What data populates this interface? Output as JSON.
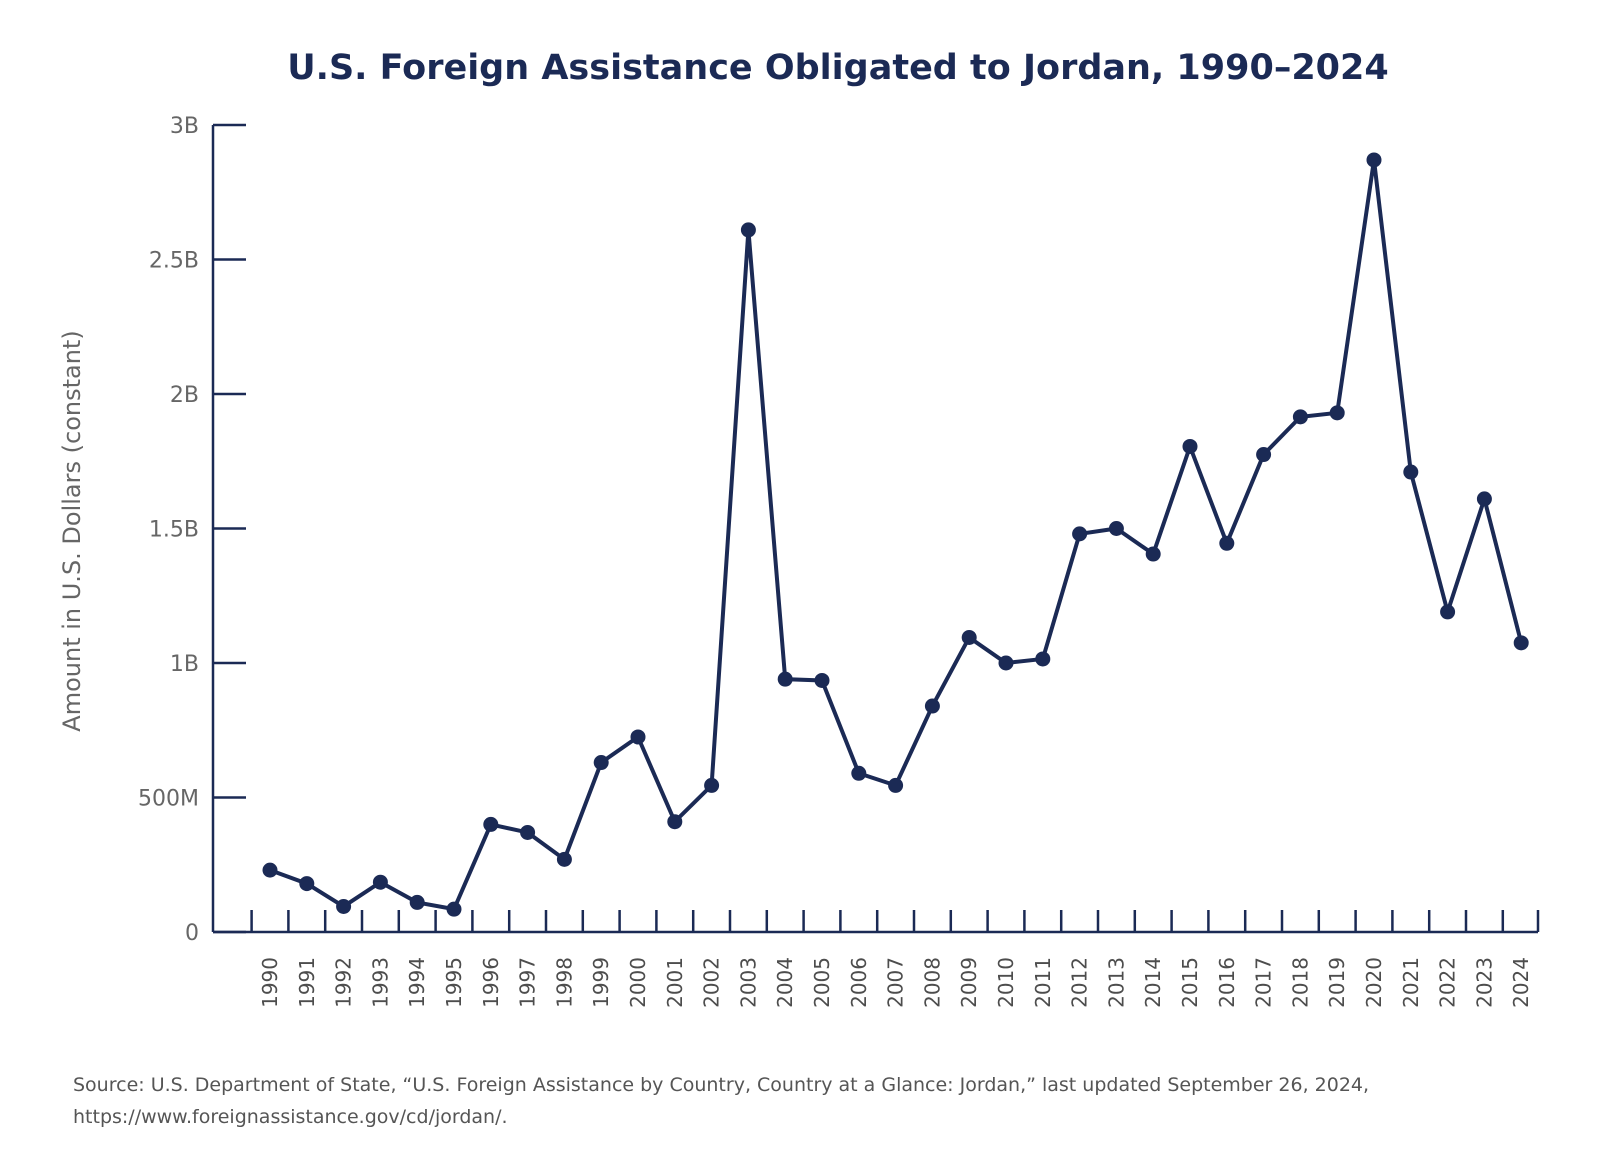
{
  "colors": {
    "line": "#1b2a55",
    "text": "#666666",
    "title": "#1b2a55",
    "background": "#ffffff"
  },
  "chart_data": {
    "type": "line",
    "title": "U.S. Foreign Assistance Obligated to Jordan, 1990–2024",
    "xlabel": "",
    "ylabel": "Amount in U.S. Dollars (constant)",
    "x": [
      "1990",
      "1991",
      "1992",
      "1993",
      "1994",
      "1995",
      "1996",
      "1997",
      "1998",
      "1999",
      "2000",
      "2001",
      "2002",
      "2003",
      "2004",
      "2005",
      "2006",
      "2007",
      "2008",
      "2009",
      "2010",
      "2011",
      "2012",
      "2013",
      "2014",
      "2015",
      "2016",
      "2017",
      "2018",
      "2019",
      "2020",
      "2021",
      "2022",
      "2023",
      "2024"
    ],
    "series": [
      {
        "values": [
          230000000,
          180000000,
          95000000,
          185000000,
          110000000,
          85000000,
          400000000,
          370000000,
          270000000,
          630000000,
          725000000,
          410000000,
          545000000,
          2610000000,
          940000000,
          935000000,
          590000000,
          545000000,
          840000000,
          1095000000,
          1000000000,
          1015000000,
          1480000000,
          1500000000,
          1405000000,
          1805000000,
          1445000000,
          1775000000,
          1915000000,
          1930000000,
          2870000000,
          1710000000,
          1190000000,
          1610000000,
          1075000000
        ]
      }
    ],
    "ylim": [
      0,
      3000000000
    ],
    "yticks": [
      0,
      500000000,
      1000000000,
      1500000000,
      2000000000,
      2500000000,
      3000000000
    ],
    "ytick_labels": [
      "0",
      "500M",
      "1B",
      "1.5B",
      "2B",
      "2.5B",
      "3B"
    ],
    "grid": false,
    "legend": "none",
    "source": [
      "Source: U.S. Department of State, “U.S. Foreign Assistance by Country, Country at a Glance: Jordan,” last updated September 26, 2024,",
      "https://www.foreignassistance.gov/cd/jordan/."
    ]
  }
}
